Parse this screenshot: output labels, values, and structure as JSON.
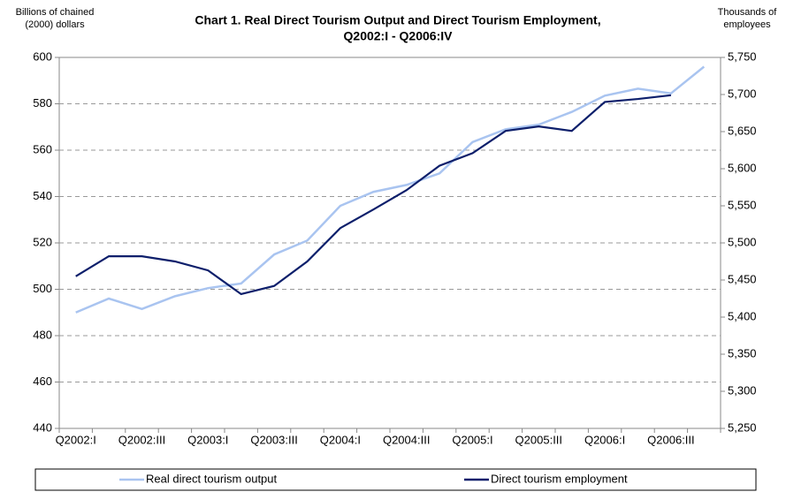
{
  "chart_data": {
    "type": "line",
    "title": [
      "Chart 1. Real Direct Tourism Output and Direct Tourism Employment,",
      "Q2002:I - Q2006:IV"
    ],
    "y_label": [
      "Billions of chained",
      "(2000) dollars"
    ],
    "y2_label": [
      "Thousands of",
      "employees"
    ],
    "categories": [
      "Q2002:I",
      null,
      "Q2002:III",
      null,
      "Q2003:I",
      null,
      "Q2003:III",
      null,
      "Q2004:I",
      null,
      "Q2004:III",
      null,
      "Q2005:I",
      null,
      "Q2005:III",
      null,
      "Q2006:I",
      null,
      "Q2006:III",
      null
    ],
    "series": [
      {
        "name": "Real direct tourism output",
        "color": "#a9c4f0",
        "values": [
          490,
          496,
          491.5,
          497,
          500.5,
          502.5,
          515,
          521,
          536,
          542,
          545,
          550,
          563.5,
          569,
          571,
          576.5,
          583.5,
          586.5,
          584.5,
          596
        ]
      },
      {
        "name": "Direct tourism employment",
        "color": "#0d1f6b",
        "axis": "y2",
        "values": [
          5455,
          5482,
          5482,
          5475,
          5463,
          5431,
          5442,
          5475,
          5520,
          5545,
          5571,
          5604,
          5621,
          5651,
          5657,
          5651,
          5690,
          5694,
          5699,
          null
        ]
      }
    ],
    "ylim": [
      440,
      600
    ],
    "yticks": [
      440,
      460,
      480,
      500,
      520,
      540,
      560,
      580,
      600
    ],
    "y2lim": [
      5250,
      5750
    ],
    "y2ticks": [
      {
        "value": 5250,
        "label": "5,250"
      },
      {
        "value": 5300,
        "label": "5,300"
      },
      {
        "value": 5350,
        "label": "5,350"
      },
      {
        "value": 5400,
        "label": "5,400"
      },
      {
        "value": 5450,
        "label": "5,450"
      },
      {
        "value": 5500,
        "label": "5,500"
      },
      {
        "value": 5550,
        "label": "5,550"
      },
      {
        "value": 5600,
        "label": "5,600"
      },
      {
        "value": 5650,
        "label": "5,650"
      },
      {
        "value": 5700,
        "label": "5,700"
      },
      {
        "value": 5750,
        "label": "5,750"
      }
    ],
    "grid": true,
    "legend": "bottom"
  }
}
